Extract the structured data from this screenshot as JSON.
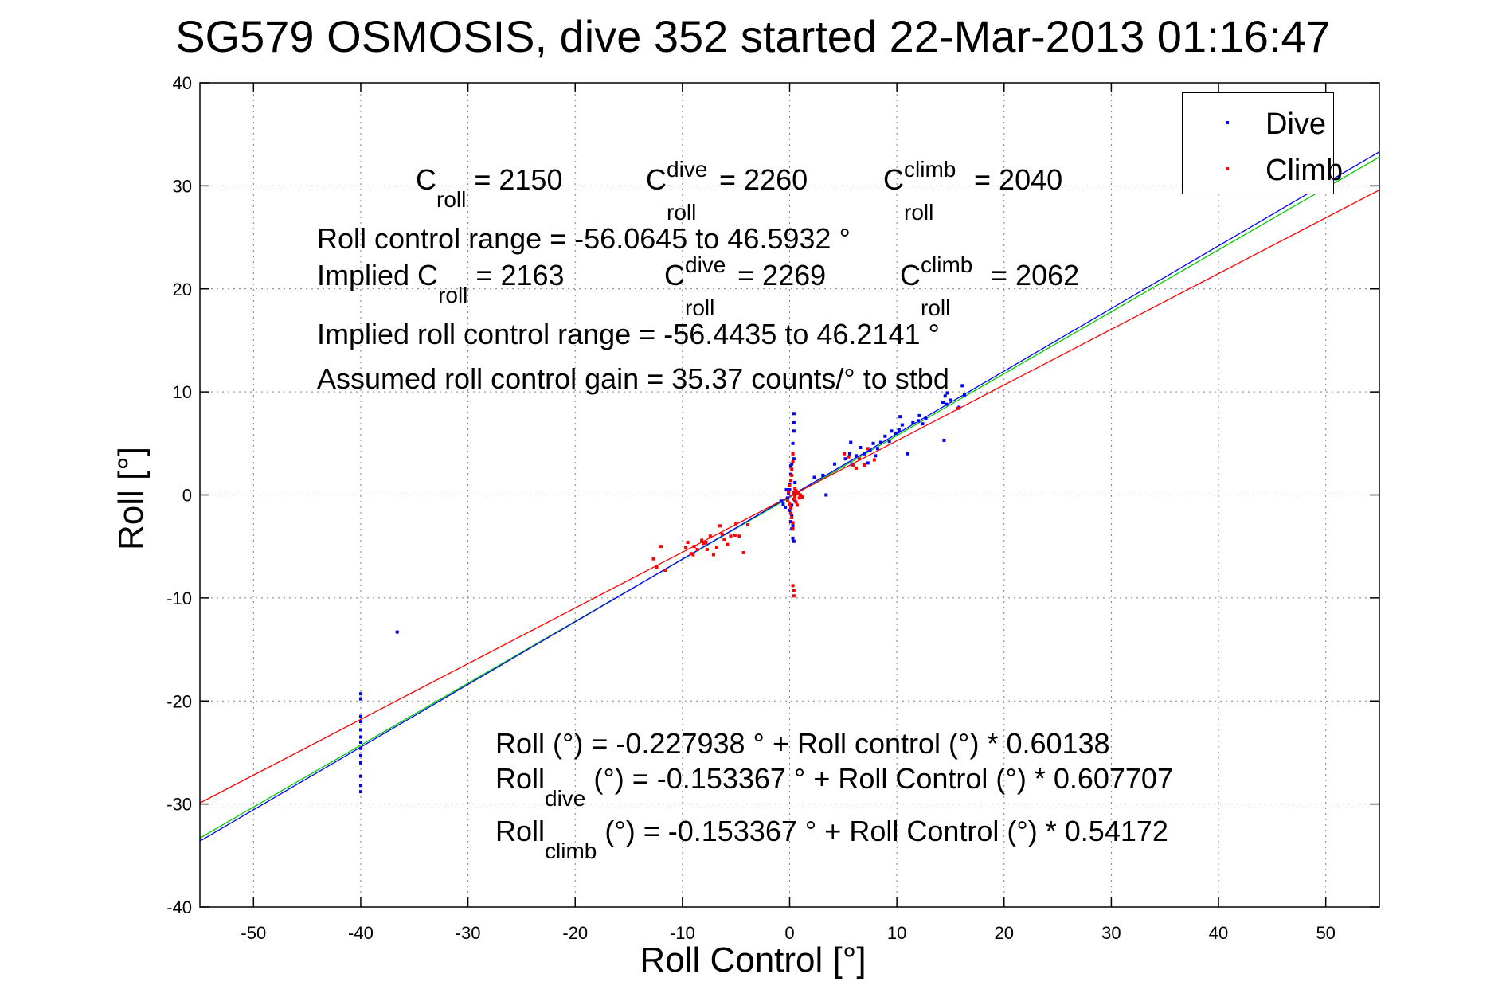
{
  "chart_data": {
    "type": "scatter",
    "title": "SG579 OSMOSIS, dive 352 started 22-Mar-2013 01:16:47",
    "xlabel": "Roll Control [°]",
    "ylabel": "Roll [°]",
    "xlim": [
      -55,
      55
    ],
    "ylim": [
      -40,
      40
    ],
    "xticks": [
      -50,
      -40,
      -30,
      -20,
      -10,
      0,
      10,
      20,
      30,
      40,
      50
    ],
    "yticks": [
      -40,
      -30,
      -20,
      -10,
      0,
      10,
      20,
      30,
      40
    ],
    "grid": true,
    "legend_position": "top-right",
    "series": [
      {
        "name": "Dive",
        "color": "#0000ff",
        "points": [
          [
            -40,
            -19.3
          ],
          [
            -40,
            -19.8
          ],
          [
            -40,
            -21.5
          ],
          [
            -40,
            -22.0
          ],
          [
            -40,
            -22.8
          ],
          [
            -40,
            -23.5
          ],
          [
            -40,
            -24.0
          ],
          [
            -40,
            -24.6
          ],
          [
            -40,
            -25.3
          ],
          [
            -40,
            -26.0
          ],
          [
            -40,
            -27.3
          ],
          [
            -40,
            -28.2
          ],
          [
            -40,
            -28.8
          ],
          [
            -36.6,
            -13.3
          ],
          [
            -0.8,
            -0.6
          ],
          [
            -0.6,
            -0.9
          ],
          [
            -0.4,
            -1.2
          ],
          [
            -0.3,
            0.5
          ],
          [
            -0.2,
            -0.3
          ],
          [
            0,
            1.0
          ],
          [
            0,
            0.5
          ],
          [
            0,
            -1.5
          ],
          [
            0.1,
            2.0
          ],
          [
            0.1,
            -2.6
          ],
          [
            0.2,
            3.0
          ],
          [
            0.2,
            -3.3
          ],
          [
            0.3,
            4.0
          ],
          [
            0.3,
            -4.2
          ],
          [
            0.3,
            5.0
          ],
          [
            0.4,
            6.2
          ],
          [
            0.4,
            7.0
          ],
          [
            0.4,
            7.9
          ],
          [
            0.4,
            -4.5
          ],
          [
            0.2,
            -1.0
          ],
          [
            -0.1,
            0.2
          ],
          [
            0.5,
            -0.5
          ],
          [
            0.1,
            2.8
          ],
          [
            0.3,
            -3.0
          ],
          [
            0.5,
            1.2
          ],
          [
            0.2,
            -2.0
          ],
          [
            0.4,
            3.5
          ],
          [
            2.3,
            1.7
          ],
          [
            3.1,
            1.9
          ],
          [
            3.4,
            0.0
          ],
          [
            4.2,
            3.0
          ],
          [
            5.2,
            3.5
          ],
          [
            5.6,
            4.0
          ],
          [
            5.7,
            5.1
          ],
          [
            5.8,
            3.0
          ],
          [
            6.2,
            3.8
          ],
          [
            6.6,
            4.6
          ],
          [
            7.0,
            4.0
          ],
          [
            7.3,
            3.1
          ],
          [
            7.5,
            4.3
          ],
          [
            7.8,
            5.0
          ],
          [
            8.0,
            3.8
          ],
          [
            8.5,
            5.1
          ],
          [
            8.9,
            5.7
          ],
          [
            9.3,
            5.2
          ],
          [
            9.5,
            6.2
          ],
          [
            10.2,
            6.3
          ],
          [
            10.3,
            7.6
          ],
          [
            10.5,
            6.8
          ],
          [
            11.0,
            4.0
          ],
          [
            11.5,
            7.0
          ],
          [
            12.0,
            7.2
          ],
          [
            12.1,
            7.7
          ],
          [
            12.4,
            6.9
          ],
          [
            12.7,
            7.4
          ],
          [
            14.3,
            9.0
          ],
          [
            14.5,
            9.6
          ],
          [
            14.6,
            8.8
          ],
          [
            14.7,
            9.9
          ],
          [
            14.4,
            5.3
          ],
          [
            15.0,
            9.2
          ],
          [
            16.1,
            10.6
          ],
          [
            16.3,
            9.7
          ],
          [
            15.8,
            8.5
          ],
          [
            8.2,
            4.5
          ],
          [
            9.9,
            6.0
          ]
        ]
      },
      {
        "name": "Climb",
        "color": "#ff0000",
        "points": [
          [
            -12.7,
            -6.2
          ],
          [
            -12.4,
            -7.0
          ],
          [
            -12.0,
            -5.0
          ],
          [
            -11.6,
            -7.3
          ],
          [
            -9.7,
            -5.1
          ],
          [
            -9.5,
            -4.6
          ],
          [
            -9.2,
            -5.7
          ],
          [
            -8.9,
            -5.0
          ],
          [
            -8.6,
            -5.3
          ],
          [
            -8.2,
            -4.4
          ],
          [
            -8.0,
            -4.7
          ],
          [
            -7.7,
            -5.3
          ],
          [
            -7.4,
            -4.0
          ],
          [
            -7.1,
            -5.8
          ],
          [
            -6.8,
            -5.1
          ],
          [
            -6.5,
            -3.0
          ],
          [
            -6.1,
            -4.3
          ],
          [
            -5.8,
            -4.8
          ],
          [
            -5.5,
            -4.0
          ],
          [
            -5.1,
            -3.9
          ],
          [
            -4.7,
            -4.0
          ],
          [
            -4.3,
            -5.6
          ],
          [
            -3.9,
            -2.9
          ],
          [
            -7.8,
            -4.6
          ],
          [
            -6.3,
            -3.8
          ],
          [
            -5.0,
            -2.8
          ],
          [
            -9.0,
            -5.8
          ],
          [
            -0.2,
            -0.5
          ],
          [
            -0.1,
            0.3
          ],
          [
            0.0,
            -0.9
          ],
          [
            0.0,
            0.9
          ],
          [
            0.1,
            -1.3
          ],
          [
            0.1,
            1.4
          ],
          [
            0.1,
            -1.8
          ],
          [
            0.2,
            1.9
          ],
          [
            0.2,
            -2.2
          ],
          [
            0.2,
            2.5
          ],
          [
            0.3,
            -2.7
          ],
          [
            0.3,
            3.2
          ],
          [
            0.3,
            4.0
          ],
          [
            0.3,
            -3.3
          ],
          [
            0.4,
            0.2
          ],
          [
            0.4,
            -0.4
          ],
          [
            0.5,
            0.6
          ],
          [
            0.5,
            -0.1
          ],
          [
            0.6,
            -0.7
          ],
          [
            0.6,
            0.4
          ],
          [
            0.7,
            -1.0
          ],
          [
            0.8,
            0.1
          ],
          [
            0.9,
            -0.3
          ],
          [
            1.0,
            0.0
          ],
          [
            1.2,
            -0.2
          ],
          [
            0.4,
            -9.3
          ],
          [
            0.4,
            -9.8
          ],
          [
            0.3,
            -8.8
          ],
          [
            5.1,
            4.0
          ],
          [
            5.5,
            3.7
          ],
          [
            5.9,
            2.9
          ],
          [
            6.2,
            2.6
          ],
          [
            6.5,
            3.5
          ],
          [
            7.0,
            2.9
          ],
          [
            7.3,
            4.5
          ],
          [
            7.9,
            3.4
          ],
          [
            15.7,
            8.4
          ]
        ]
      },
      {
        "name": "",
        "color": "#00cc00",
        "line": [
          [
            -55,
            -33.3
          ],
          [
            55,
            32.8
          ]
        ]
      },
      {
        "name": "",
        "color": "#0000ff",
        "line": [
          [
            -55,
            -33.6
          ],
          [
            55,
            33.3
          ]
        ]
      },
      {
        "name": "",
        "color": "#ff0000",
        "line": [
          [
            -55,
            -29.9
          ],
          [
            55,
            29.6
          ]
        ]
      }
    ],
    "annotations": {
      "c_roll": {
        "label": "C",
        "sub": "roll",
        "value": "= 2150"
      },
      "c_roll_dive": {
        "label": "C",
        "sup": "dive",
        "sub": "roll",
        "value": "= 2260"
      },
      "c_roll_climb": {
        "label": "C",
        "sup": "climb",
        "sub": "roll",
        "value": "= 2040"
      },
      "range": "Roll control range = -56.0645 to 46.5932 °",
      "implied_prefix": "Implied C",
      "implied_sub": "roll",
      "implied_value": "= 2163",
      "implied_dive": {
        "label": "C",
        "sup": "dive",
        "sub": "roll",
        "value": "= 2269"
      },
      "implied_climb": {
        "label": "C",
        "sup": "climb",
        "sub": "roll",
        "value": "= 2062"
      },
      "implied_range": "Implied roll control range = -56.4435 to 46.2141 °",
      "gain": "Assumed roll control gain = 35.37 counts/° to stbd",
      "eq1": "Roll (°) = -0.227938 ° + Roll control (°) * 0.60138",
      "eq2_prefix": "Roll",
      "eq2_sub": "dive",
      "eq2_rest": " (°) = -0.153367 ° + Roll Control (°) * 0.607707",
      "eq3_prefix": "Roll",
      "eq3_sub": "climb",
      "eq3_rest": " (°) = -0.153367 ° + Roll Control (°) * 0.54172"
    }
  }
}
